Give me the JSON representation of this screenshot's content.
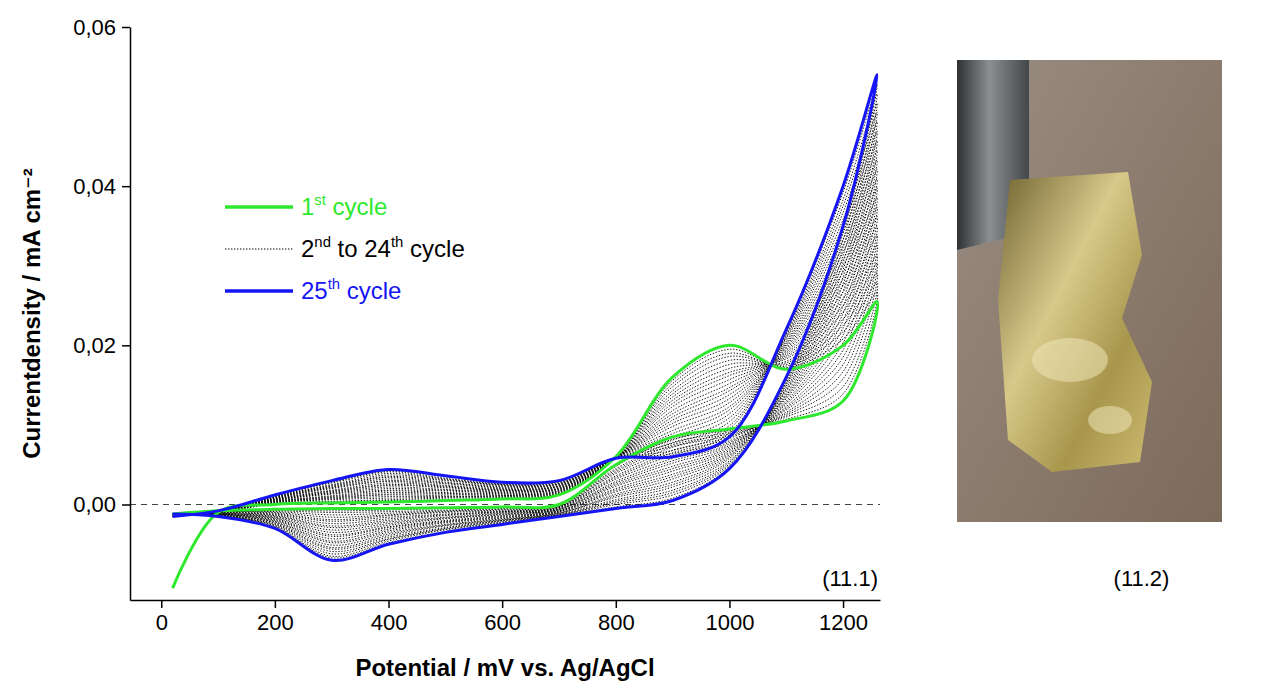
{
  "chart_data": {
    "type": "line",
    "x_label": "Potential / mV vs. Ag/AgCl",
    "y_label": "Currentdensity / mA cm⁻²",
    "xlim": [
      -55,
      1265
    ],
    "ylim": [
      -0.012,
      0.06
    ],
    "xticks": [
      0,
      200,
      400,
      600,
      800,
      1000,
      1200
    ],
    "yticks": [
      {
        "value": 0,
        "label": "0,00"
      },
      {
        "value": 0.02,
        "label": "0,02"
      },
      {
        "value": 0.04,
        "label": "0,04"
      },
      {
        "value": 0.06,
        "label": "0,06"
      }
    ],
    "grid": false,
    "legend": "upper left",
    "hline": 0,
    "annotations": [
      "(11.1)"
    ],
    "x": [
      20,
      100,
      200,
      300,
      400,
      500,
      600,
      700,
      800,
      900,
      1000,
      1100,
      1200,
      1260,
      1200,
      1100,
      1000,
      900,
      800,
      700,
      600,
      500,
      400,
      300,
      200,
      100,
      20
    ],
    "series": [
      {
        "name": "1st cycle",
        "color": "#2ee82e",
        "line_style": "solid",
        "values": [
          -0.0105,
          -0.001,
          0.0,
          0.0002,
          0.0003,
          0.0005,
          0.0007,
          0.0012,
          0.006,
          0.016,
          0.02,
          0.017,
          0.02,
          0.0255,
          0.013,
          0.0105,
          0.0095,
          0.0085,
          0.005,
          0.0,
          -0.0003,
          -0.0004,
          -0.0005,
          -0.0005,
          -0.0006,
          -0.0008,
          -0.0012
        ]
      },
      {
        "name": "2nd to 24th cycle",
        "color": "#000000",
        "line_style": "dotted",
        "values": [
          [
            -0.0015,
            -0.001,
            0.0001,
            0.0003,
            0.0005,
            0.0006,
            0.0008,
            0.0013,
            0.006,
            0.0156,
            0.0195,
            0.0172,
            0.0208,
            0.0267,
            0.0139,
            0.0107,
            0.0093,
            0.0082,
            0.0048,
            -0.0001,
            -0.0004,
            -0.0005,
            -0.0007,
            -0.0008,
            -0.0007,
            -0.0008,
            -0.0012
          ],
          [
            -0.0015,
            -0.001,
            0.0001,
            0.0004,
            0.0006,
            0.0008,
            0.0009,
            0.0014,
            0.006,
            0.0152,
            0.019,
            0.0174,
            0.0217,
            0.0279,
            0.0148,
            0.011,
            0.0091,
            0.0078,
            0.0045,
            -0.0001,
            -0.0005,
            -0.0007,
            -0.0009,
            -0.001,
            -0.0008,
            -0.0009,
            -0.0012
          ],
          [
            -0.0015,
            -0.001,
            0.0002,
            0.0006,
            0.0008,
            0.0009,
            0.001,
            0.0014,
            0.006,
            0.0148,
            0.0186,
            0.0176,
            0.0225,
            0.0291,
            0.0158,
            0.0112,
            0.0089,
            0.0075,
            0.0043,
            -0.0002,
            -0.0006,
            -0.0008,
            -0.0011,
            -0.0013,
            -0.0009,
            -0.0009,
            -0.0012
          ],
          [
            -0.0015,
            -0.001,
            0.0002,
            0.0007,
            0.001,
            0.001,
            0.0011,
            0.0015,
            0.006,
            0.0143,
            0.0181,
            0.0178,
            0.0233,
            0.0303,
            0.0167,
            0.0114,
            0.0087,
            0.0072,
            0.0041,
            -0.0003,
            -0.0007,
            -0.0009,
            -0.0013,
            -0.0016,
            -0.001,
            -0.0009,
            -0.0012
          ],
          [
            -0.0015,
            -0.001,
            0.0003,
            0.0008,
            0.0012,
            0.0011,
            0.0011,
            0.0016,
            0.006,
            0.0139,
            0.0176,
            0.018,
            0.0242,
            0.0314,
            0.0176,
            0.0116,
            0.0085,
            0.0068,
            0.0039,
            -0.0003,
            -0.0008,
            -0.001,
            -0.0014,
            -0.0019,
            -0.0011,
            -0.0009,
            -0.0012
          ],
          [
            -0.0015,
            -0.001,
            0.0003,
            0.0009,
            0.0013,
            0.0013,
            0.0012,
            0.0017,
            0.006,
            0.0135,
            0.0171,
            0.0183,
            0.025,
            0.0326,
            0.0185,
            0.0119,
            0.0083,
            0.0065,
            0.0036,
            -0.0004,
            -0.0009,
            -0.0012,
            -0.0016,
            -0.0021,
            -0.0012,
            -0.001,
            -0.0012
          ],
          [
            -0.0015,
            -0.0009,
            0.0004,
            0.001,
            0.0015,
            0.0014,
            0.0013,
            0.0017,
            0.0059,
            0.0131,
            0.0166,
            0.0185,
            0.0258,
            0.0338,
            0.0194,
            0.0121,
            0.008,
            0.0062,
            0.0034,
            -0.0004,
            -0.0009,
            -0.0013,
            -0.0018,
            -0.0024,
            -0.0013,
            -0.001,
            -0.0012
          ],
          [
            -0.0015,
            -0.0009,
            0.0004,
            0.0011,
            0.0017,
            0.0015,
            0.0014,
            0.0018,
            0.0059,
            0.0127,
            0.0162,
            0.0187,
            0.0267,
            0.035,
            0.0203,
            0.0123,
            0.0078,
            0.0058,
            0.0032,
            -0.0005,
            -0.001,
            -0.0014,
            -0.002,
            -0.0027,
            -0.0014,
            -0.001,
            -0.0012
          ],
          [
            -0.0015,
            -0.0009,
            0.0005,
            0.0013,
            0.0018,
            0.0017,
            0.0015,
            0.0019,
            0.0059,
            0.0123,
            0.0157,
            0.0189,
            0.0275,
            0.0362,
            0.0213,
            0.0126,
            0.0076,
            0.0055,
            0.0029,
            -0.0006,
            -0.0011,
            -0.0016,
            -0.0022,
            -0.0029,
            -0.0015,
            -0.0011,
            -0.0012
          ],
          [
            -0.0015,
            -0.0009,
            0.0005,
            0.0014,
            0.002,
            0.0018,
            0.0016,
            0.002,
            0.0059,
            0.0118,
            0.0152,
            0.0191,
            0.0283,
            0.0374,
            0.0222,
            0.0128,
            0.0074,
            0.0052,
            0.0027,
            -0.0006,
            -0.0012,
            -0.0017,
            -0.0024,
            -0.0032,
            -0.0016,
            -0.0011,
            -0.0012
          ],
          [
            -0.0015,
            -0.0009,
            0.0006,
            0.0015,
            0.0022,
            0.0019,
            0.0017,
            0.002,
            0.0059,
            0.0114,
            0.0147,
            0.0193,
            0.0292,
            0.0386,
            0.0231,
            0.013,
            0.0072,
            0.0048,
            0.0025,
            -0.0007,
            -0.0013,
            -0.0018,
            -0.0026,
            -0.0035,
            -0.0017,
            -0.0011,
            -0.0012
          ],
          [
            -0.0015,
            -0.0009,
            0.0006,
            0.0016,
            0.0024,
            0.0021,
            0.0018,
            0.0021,
            0.0059,
            0.011,
            0.0143,
            0.0195,
            0.03,
            0.0398,
            0.024,
            0.0133,
            0.007,
            0.0045,
            0.0023,
            -0.0008,
            -0.0014,
            -0.002,
            -0.0028,
            -0.0038,
            -0.0018,
            -0.0012,
            -0.0012
          ],
          [
            -0.0015,
            -0.0009,
            0.0007,
            0.0017,
            0.0025,
            0.0022,
            0.0018,
            0.0022,
            0.0059,
            0.0106,
            0.0138,
            0.0197,
            0.0308,
            0.0409,
            0.0249,
            0.0135,
            0.0068,
            0.0042,
            0.002,
            -0.0008,
            -0.0015,
            -0.0021,
            -0.0029,
            -0.004,
            -0.0019,
            -0.0012,
            -0.0012
          ],
          [
            -0.0015,
            -0.0009,
            0.0007,
            0.0018,
            0.0027,
            0.0023,
            0.0019,
            0.0023,
            0.0059,
            0.0102,
            0.0133,
            0.0199,
            0.0317,
            0.0421,
            0.0258,
            0.0137,
            0.0066,
            0.0038,
            0.0018,
            -0.0009,
            -0.0016,
            -0.0022,
            -0.0031,
            -0.0043,
            -0.002,
            -0.0012,
            -0.0012
          ],
          [
            -0.0015,
            -0.0009,
            0.0008,
            0.002,
            0.0029,
            0.0024,
            0.002,
            0.0023,
            0.0059,
            0.0098,
            0.0128,
            0.0201,
            0.0325,
            0.0433,
            0.0268,
            0.0139,
            0.0064,
            0.0035,
            0.0016,
            -0.0009,
            -0.0017,
            -0.0023,
            -0.0033,
            -0.0046,
            -0.0021,
            -0.0012,
            -0.0012
          ],
          [
            -0.0015,
            -0.0009,
            0.0008,
            0.0021,
            0.003,
            0.0026,
            0.0021,
            0.0024,
            0.0059,
            0.0093,
            0.0123,
            0.0203,
            0.0333,
            0.0445,
            0.0277,
            0.0142,
            0.0062,
            0.0032,
            0.0013,
            -0.001,
            -0.0018,
            -0.0025,
            -0.0035,
            -0.0048,
            -0.0022,
            -0.0013,
            -0.0012
          ],
          [
            -0.0015,
            -0.0009,
            0.0009,
            0.0022,
            0.0032,
            0.0027,
            0.0022,
            0.0025,
            0.0059,
            0.0089,
            0.0119,
            0.0205,
            0.0342,
            0.0457,
            0.0286,
            0.0144,
            0.006,
            0.0028,
            0.0011,
            -0.0011,
            -0.0019,
            -0.0026,
            -0.0037,
            -0.0051,
            -0.0023,
            -0.0013,
            -0.0012
          ],
          [
            -0.0015,
            -0.0009,
            0.0009,
            0.0023,
            0.0034,
            0.0028,
            0.0023,
            0.0026,
            0.0059,
            0.0085,
            0.0114,
            0.0208,
            0.035,
            0.0469,
            0.0295,
            0.0146,
            0.0058,
            0.0025,
            0.0009,
            -0.0011,
            -0.002,
            -0.0027,
            -0.0039,
            -0.0054,
            -0.0024,
            -0.0013,
            -0.0012
          ],
          [
            -0.0015,
            -0.0008,
            0.001,
            0.0024,
            0.0035,
            0.003,
            0.0024,
            0.0026,
            0.0058,
            0.0081,
            0.0109,
            0.021,
            0.0358,
            0.0481,
            0.0304,
            0.0149,
            0.0055,
            0.0022,
            0.0006,
            -0.0012,
            -0.002,
            -0.0029,
            -0.0041,
            -0.0056,
            -0.0025,
            -0.0014,
            -0.0012
          ],
          [
            -0.0015,
            -0.0008,
            0.001,
            0.0025,
            0.0037,
            0.0031,
            0.0025,
            0.0027,
            0.0058,
            0.0077,
            0.0104,
            0.0212,
            0.0367,
            0.0493,
            0.0313,
            0.0151,
            0.0053,
            0.0018,
            0.0004,
            -0.0013,
            -0.0021,
            -0.003,
            -0.0043,
            -0.0059,
            -0.0026,
            -0.0014,
            -0.0012
          ],
          [
            -0.0015,
            -0.0008,
            0.0011,
            0.0027,
            0.0039,
            0.0032,
            0.0025,
            0.0028,
            0.0058,
            0.0073,
            0.0099,
            0.0214,
            0.0375,
            0.0504,
            0.0323,
            0.0153,
            0.0051,
            0.0015,
            0.0002,
            -0.0013,
            -0.0022,
            -0.0031,
            -0.0044,
            -0.0062,
            -0.0027,
            -0.0014,
            -0.0012
          ],
          [
            -0.0015,
            -0.0008,
            0.0011,
            0.0028,
            0.0041,
            0.0033,
            0.0026,
            0.0029,
            0.0058,
            0.0068,
            0.0095,
            0.0216,
            0.0383,
            0.0516,
            0.0332,
            0.0155,
            0.0049,
            0.0012,
            0.0,
            -0.0014,
            -0.0023,
            -0.0032,
            -0.0046,
            -0.0065,
            -0.0028,
            -0.0014,
            -0.0012
          ],
          [
            -0.0015,
            -0.0008,
            0.0012,
            0.0029,
            0.0042,
            0.0035,
            0.0027,
            0.0029,
            0.0058,
            0.0064,
            0.009,
            0.0218,
            0.0392,
            0.0528,
            0.0341,
            0.0158,
            0.0047,
            0.0008,
            -0.0003,
            -0.0014,
            -0.0024,
            -0.0034,
            -0.0048,
            -0.0067,
            -0.0029,
            -0.0015,
            -0.0012
          ]
        ]
      },
      {
        "name": "25th cycle",
        "color": "#1515f5",
        "line_style": "solid",
        "values": [
          -0.0015,
          -0.0008,
          0.0012,
          0.003,
          0.0044,
          0.0036,
          0.0028,
          0.003,
          0.0058,
          0.006,
          0.0085,
          0.022,
          0.04,
          0.054,
          0.035,
          0.016,
          0.0045,
          0.0005,
          -0.0005,
          -0.0015,
          -0.0025,
          -0.0035,
          -0.005,
          -0.007,
          -0.003,
          -0.0015,
          -0.0012
        ]
      }
    ]
  },
  "photo": {
    "label": "(11.2)"
  }
}
